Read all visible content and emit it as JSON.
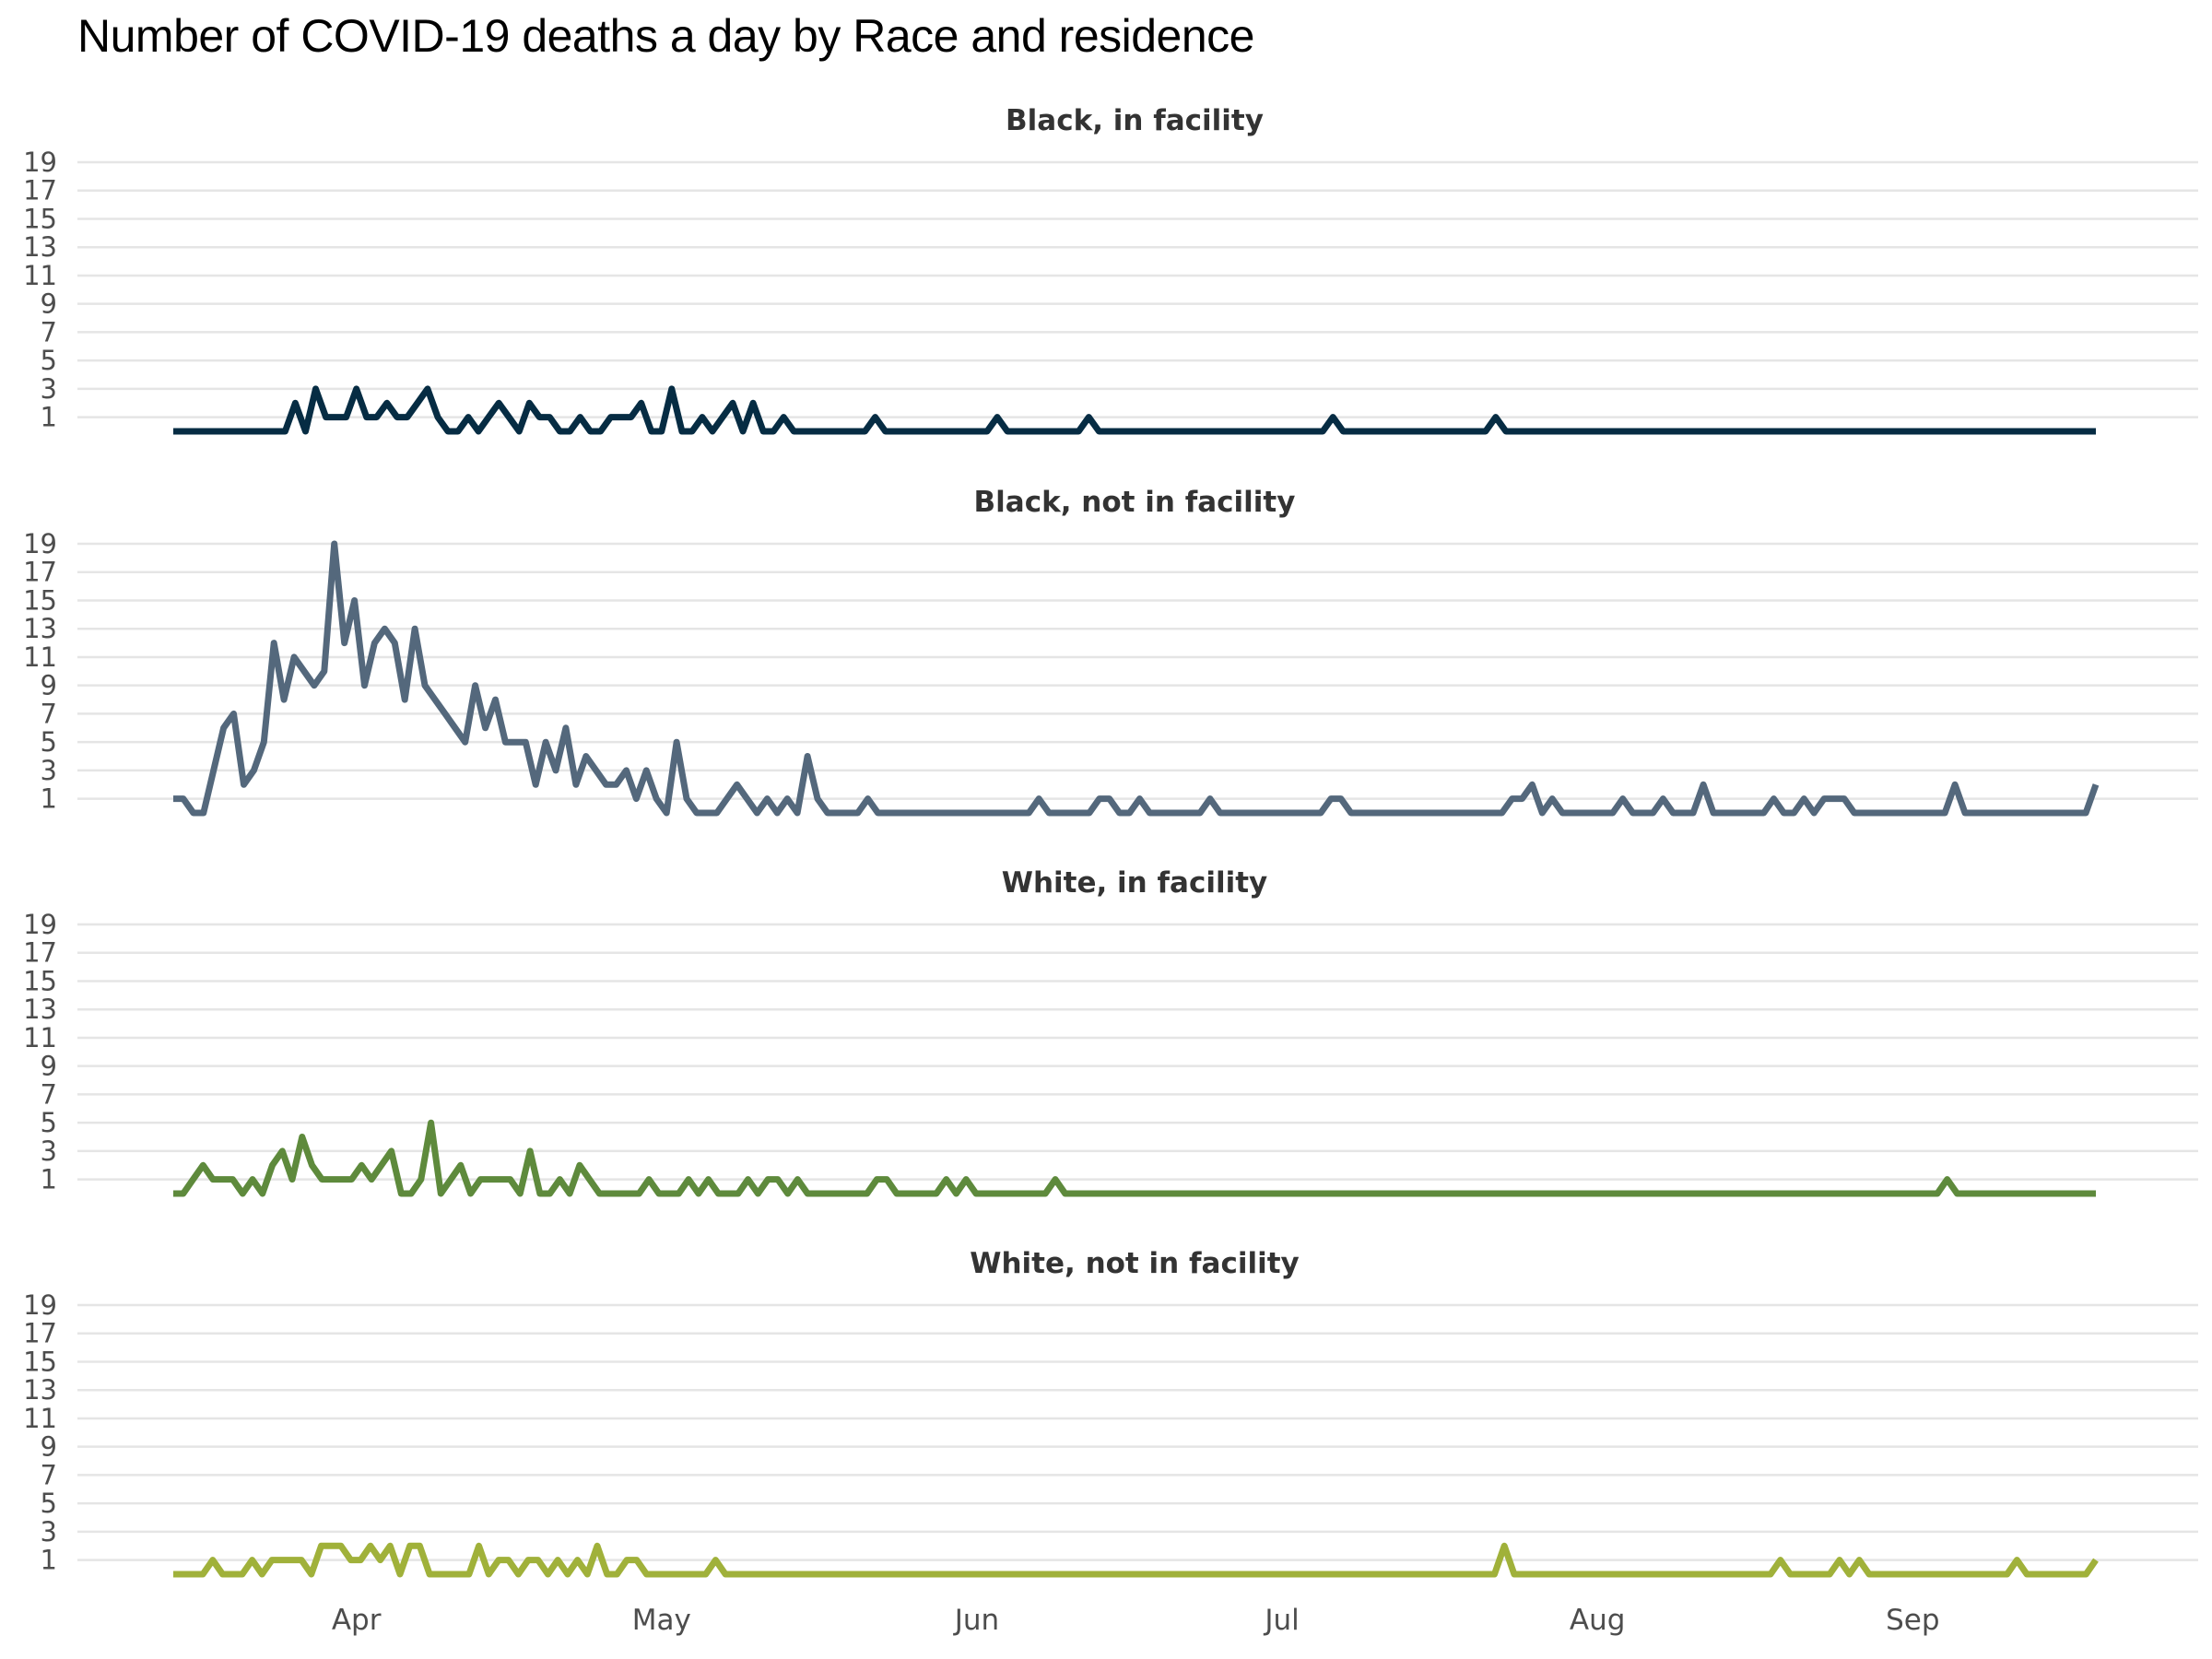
{
  "chart_data": {
    "type": "line",
    "title": "Number of COVID-19 deaths a day by Race and residence",
    "xlabel": "",
    "ylabel": "",
    "x_start": "2020-03-14",
    "x_end": "2020-09-19",
    "x_ticks": [
      "Apr",
      "May",
      "Jun",
      "Jul",
      "Aug",
      "Sep"
    ],
    "x_tick_dates": [
      "2020-04-01",
      "2020-05-01",
      "2020-06-01",
      "2020-07-01",
      "2020-08-01",
      "2020-09-01"
    ],
    "y_ticks": [
      1,
      3,
      5,
      7,
      9,
      11,
      13,
      15,
      17,
      19
    ],
    "ylim": [
      0,
      19
    ],
    "grid": true,
    "facets": [
      {
        "name": "Black, in facility",
        "color": "#062c43",
        "values": [
          0,
          0,
          0,
          0,
          0,
          0,
          0,
          0,
          0,
          0,
          0,
          0,
          2,
          0,
          3,
          1,
          1,
          1,
          3,
          1,
          1,
          2,
          1,
          1,
          2,
          3,
          1,
          0,
          0,
          1,
          0,
          1,
          2,
          1,
          0,
          2,
          1,
          1,
          0,
          0,
          1,
          0,
          0,
          1,
          1,
          1,
          2,
          0,
          0,
          3,
          0,
          0,
          1,
          0,
          1,
          2,
          0,
          2,
          0,
          0,
          1,
          0,
          0,
          0,
          0,
          0,
          0,
          0,
          0,
          1,
          0,
          0,
          0,
          0,
          0,
          0,
          0,
          0,
          0,
          0,
          0,
          1,
          0,
          0,
          0,
          0,
          0,
          0,
          0,
          0,
          1,
          0,
          0,
          0,
          0,
          0,
          0,
          0,
          0,
          0,
          0,
          0,
          0,
          0,
          0,
          0,
          0,
          0,
          0,
          0,
          0,
          0,
          0,
          0,
          1,
          0,
          0,
          0,
          0,
          0,
          0,
          0,
          0,
          0,
          0,
          0,
          0,
          0,
          0,
          0,
          1,
          0,
          0,
          0,
          0,
          0,
          0,
          0,
          0,
          0,
          0,
          0,
          0,
          0,
          0,
          0,
          0,
          0,
          0,
          0,
          0,
          0,
          0,
          0,
          0,
          0,
          0,
          0,
          0,
          0,
          0,
          0,
          0,
          0,
          0,
          0,
          0,
          0,
          0,
          0,
          0,
          0,
          0,
          0,
          0,
          0,
          0,
          0,
          0,
          0,
          0,
          0,
          0,
          0,
          0,
          0,
          0,
          0,
          0,
          0
        ]
      },
      {
        "name": "Black, not in facility",
        "color": "#54687c",
        "values": [
          1,
          1,
          0,
          0,
          3,
          6,
          7,
          2,
          3,
          5,
          12,
          8,
          11,
          10,
          9,
          10,
          19,
          12,
          15,
          9,
          12,
          13,
          12,
          8,
          13,
          9,
          8,
          7,
          6,
          5,
          9,
          6,
          8,
          5,
          5,
          5,
          2,
          5,
          3,
          6,
          2,
          4,
          3,
          2,
          2,
          3,
          1,
          3,
          1,
          0,
          5,
          1,
          0,
          0,
          0,
          1,
          2,
          1,
          0,
          1,
          0,
          1,
          0,
          4,
          1,
          0,
          0,
          0,
          0,
          1,
          0,
          0,
          0,
          0,
          0,
          0,
          0,
          0,
          0,
          0,
          0,
          0,
          0,
          0,
          0,
          0,
          1,
          0,
          0,
          0,
          0,
          0,
          1,
          1,
          0,
          0,
          1,
          0,
          0,
          0,
          0,
          0,
          0,
          1,
          0,
          0,
          0,
          0,
          0,
          0,
          0,
          0,
          0,
          0,
          0,
          1,
          1,
          0,
          0,
          0,
          0,
          0,
          0,
          0,
          0,
          0,
          0,
          0,
          0,
          0,
          0,
          0,
          0,
          1,
          1,
          2,
          0,
          1,
          0,
          0,
          0,
          0,
          0,
          0,
          1,
          0,
          0,
          0,
          1,
          0,
          0,
          0,
          2,
          0,
          0,
          0,
          0,
          0,
          0,
          1,
          0,
          0,
          1,
          0,
          1,
          1,
          1,
          0,
          0,
          0,
          0,
          0,
          0,
          0,
          0,
          0,
          0,
          2,
          0,
          0,
          0,
          0,
          0,
          0,
          0,
          0,
          0,
          0,
          0,
          0,
          0,
          2
        ]
      },
      {
        "name": "White, in facility",
        "color": "#5e8a3c",
        "values": [
          0,
          0,
          1,
          2,
          1,
          1,
          1,
          0,
          1,
          0,
          2,
          3,
          1,
          4,
          2,
          1,
          1,
          1,
          1,
          2,
          1,
          2,
          3,
          0,
          0,
          1,
          5,
          0,
          1,
          2,
          0,
          1,
          1,
          1,
          1,
          0,
          3,
          0,
          0,
          1,
          0,
          2,
          1,
          0,
          0,
          0,
          0,
          0,
          1,
          0,
          0,
          0,
          1,
          0,
          1,
          0,
          0,
          0,
          1,
          0,
          1,
          1,
          0,
          1,
          0,
          0,
          0,
          0,
          0,
          0,
          0,
          1,
          1,
          0,
          0,
          0,
          0,
          0,
          1,
          0,
          1,
          0,
          0,
          0,
          0,
          0,
          0,
          0,
          0,
          1,
          0,
          0,
          0,
          0,
          0,
          0,
          0,
          0,
          0,
          0,
          0,
          0,
          0,
          0,
          0,
          0,
          0,
          0,
          0,
          0,
          0,
          0,
          0,
          0,
          0,
          0,
          0,
          0,
          0,
          0,
          0,
          0,
          0,
          0,
          0,
          0,
          0,
          0,
          0,
          0,
          0,
          0,
          0,
          0,
          0,
          0,
          0,
          0,
          0,
          0,
          0,
          0,
          0,
          0,
          0,
          0,
          0,
          0,
          0,
          0,
          0,
          0,
          0,
          0,
          0,
          0,
          0,
          0,
          0,
          0,
          0,
          0,
          0,
          0,
          0,
          0,
          0,
          0,
          0,
          0,
          0,
          0,
          0,
          0,
          0,
          0,
          0,
          0,
          0,
          1,
          0,
          0,
          0,
          0,
          0,
          0,
          0,
          0,
          0,
          0,
          0,
          0,
          0,
          0,
          0
        ]
      },
      {
        "name": "White, not in facility",
        "color": "#a0b13a",
        "values": [
          0,
          0,
          0,
          0,
          1,
          0,
          0,
          0,
          1,
          0,
          1,
          1,
          1,
          1,
          0,
          2,
          2,
          2,
          1,
          1,
          2,
          1,
          2,
          0,
          2,
          2,
          0,
          0,
          0,
          0,
          0,
          2,
          0,
          1,
          1,
          0,
          1,
          1,
          0,
          1,
          0,
          1,
          0,
          2,
          0,
          0,
          1,
          1,
          0,
          0,
          0,
          0,
          0,
          0,
          0,
          1,
          0,
          0,
          0,
          0,
          0,
          0,
          0,
          0,
          0,
          0,
          0,
          0,
          0,
          0,
          0,
          0,
          0,
          0,
          0,
          0,
          0,
          0,
          0,
          0,
          0,
          0,
          0,
          0,
          0,
          0,
          0,
          0,
          0,
          0,
          0,
          0,
          0,
          0,
          0,
          0,
          0,
          0,
          0,
          0,
          0,
          0,
          0,
          0,
          0,
          0,
          0,
          0,
          0,
          0,
          0,
          0,
          0,
          0,
          0,
          0,
          0,
          0,
          0,
          0,
          0,
          0,
          0,
          0,
          0,
          0,
          0,
          0,
          0,
          0,
          0,
          0,
          0,
          0,
          0,
          2,
          0,
          0,
          0,
          0,
          0,
          0,
          0,
          0,
          0,
          0,
          0,
          0,
          0,
          0,
          0,
          0,
          0,
          0,
          0,
          0,
          0,
          0,
          0,
          0,
          0,
          0,
          0,
          1,
          0,
          0,
          0,
          0,
          0,
          1,
          0,
          1,
          0,
          0,
          0,
          0,
          0,
          0,
          0,
          0,
          0,
          0,
          0,
          0,
          0,
          0,
          0,
          1,
          0,
          0,
          0,
          0,
          0,
          0,
          0,
          1
        ]
      }
    ]
  }
}
